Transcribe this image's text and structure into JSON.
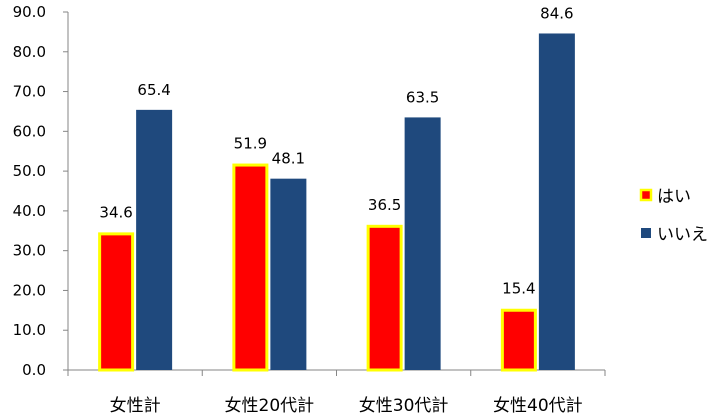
{
  "chart_data": {
    "type": "bar",
    "categories": [
      "女性計",
      "女性20代計",
      "女性30代計",
      "女性40代計"
    ],
    "series": [
      {
        "name": "はい",
        "values": [
          34.6,
          51.9,
          36.5,
          15.4
        ],
        "color": "#ff0000",
        "border": "#ffff00"
      },
      {
        "name": "いいえ",
        "values": [
          65.4,
          48.1,
          63.5,
          84.6
        ],
        "color": "#1f497d"
      }
    ],
    "ylim": [
      0,
      90
    ],
    "yticks": [
      "0.0",
      "10.0",
      "20.0",
      "30.0",
      "40.0",
      "50.0",
      "60.0",
      "70.0",
      "80.0",
      "90.0"
    ],
    "legend_position": "right",
    "grid": false
  }
}
